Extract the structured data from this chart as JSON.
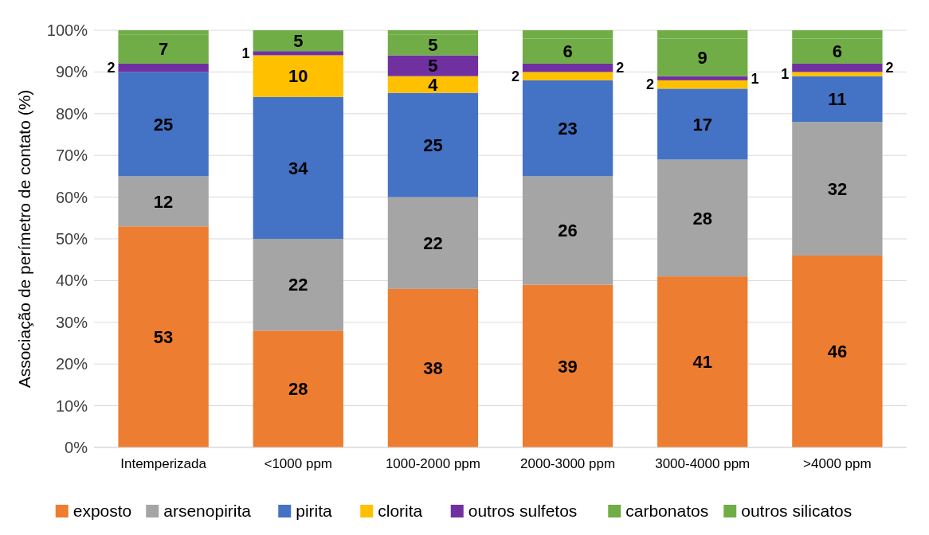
{
  "chart_data": {
    "type": "bar",
    "stacked": true,
    "ylabel": "Associação de perímetro de contato (%)",
    "categories": [
      "Intemperizada",
      "<1000 ppm",
      "1000-2000 ppm",
      "2000-3000 ppm",
      "3000-4000 ppm",
      ">4000 ppm"
    ],
    "series": [
      {
        "name": "exposto",
        "color": "#ed7d31",
        "values": [
          53,
          28,
          38,
          39,
          41,
          46
        ],
        "value_labels": [
          "53",
          "28",
          "38",
          "39",
          "41",
          "46"
        ]
      },
      {
        "name": "arsenopirita",
        "color": "#a5a5a5",
        "values": [
          12,
          22,
          22,
          26,
          28,
          32
        ],
        "value_labels": [
          "12",
          "22",
          "22",
          "26",
          "28",
          "32"
        ]
      },
      {
        "name": "pirita",
        "color": "#4472c4",
        "values": [
          25,
          34,
          25,
          23,
          17,
          11
        ],
        "value_labels": [
          "25",
          "34",
          "25",
          "23",
          "17",
          "11"
        ]
      },
      {
        "name": "clorita",
        "color": "#ffc000",
        "values": [
          0,
          10,
          4,
          2,
          2,
          1
        ],
        "value_labels": [
          null,
          "10",
          "4",
          "2",
          "2",
          "1"
        ]
      },
      {
        "name": "outros sulfetos",
        "color": "#7030a0",
        "values": [
          2,
          1,
          5,
          2,
          1,
          2
        ],
        "value_labels": [
          "2",
          "1",
          "5",
          "2",
          "1",
          "2"
        ]
      },
      {
        "name": "carbonatos",
        "color": "#70ad47",
        "values": [
          7,
          5,
          5,
          6,
          9,
          6
        ],
        "value_labels": [
          "7",
          "5",
          "5",
          "6",
          "9",
          "6"
        ]
      },
      {
        "name": "outros silicatos",
        "color": "#70ad47",
        "values": [
          1,
          0,
          1,
          2,
          2,
          2
        ],
        "value_labels": [
          null,
          null,
          null,
          null,
          null,
          null
        ]
      }
    ],
    "ylim": [
      0,
      100
    ],
    "yticks": [
      {
        "value": 0,
        "label": "0%"
      },
      {
        "value": 10,
        "label": "10%"
      },
      {
        "value": 20,
        "label": "20%"
      },
      {
        "value": 30,
        "label": "30%"
      },
      {
        "value": 40,
        "label": "40%"
      },
      {
        "value": 50,
        "label": "50%"
      },
      {
        "value": 60,
        "label": "60%"
      },
      {
        "value": 70,
        "label": "70%"
      },
      {
        "value": 80,
        "label": "80%"
      },
      {
        "value": 90,
        "label": "90%"
      },
      {
        "value": 100,
        "label": "100%"
      }
    ],
    "grid": "y",
    "legend": "bottom"
  }
}
